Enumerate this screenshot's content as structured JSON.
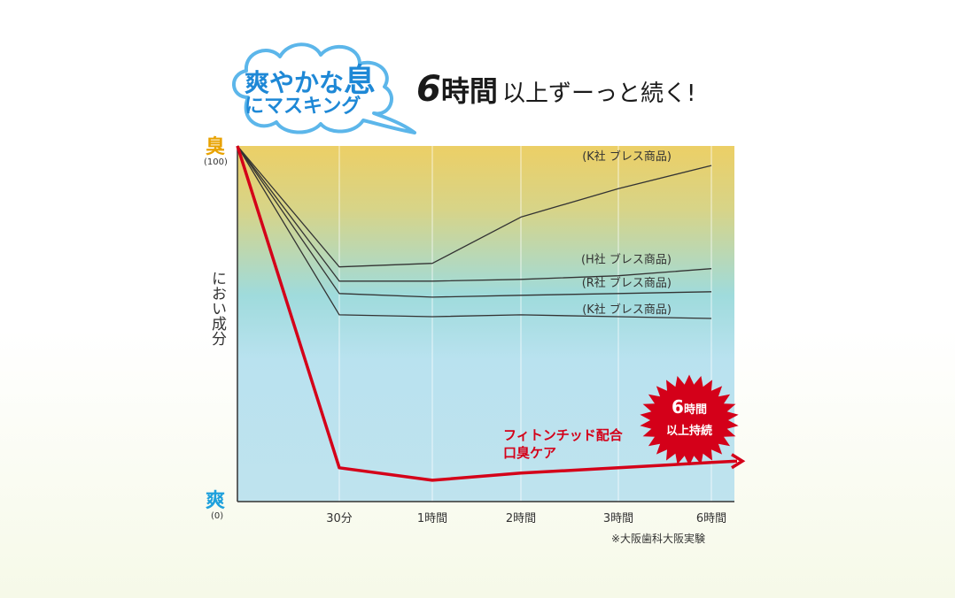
{
  "header": {
    "cloud_line1_a": "爽やかな",
    "cloud_line1_b": "息",
    "cloud_line2": "にマスキング",
    "headline_num": "6",
    "headline_unit": "時間",
    "headline_rest": "以上ずーっと続く!"
  },
  "axis": {
    "top_label": "臭",
    "top_value": "(100)",
    "bottom_label": "爽",
    "bottom_value": "(0)",
    "title": "におい成分"
  },
  "badge": {
    "num": "6",
    "unit": "時間",
    "line2": "以上持続"
  },
  "main_label": {
    "line1": "フィトンチッド配合",
    "line2": "口臭ケア"
  },
  "note": "※大阪歯科大阪実験",
  "colors": {
    "odor": "#e8a200",
    "fresh": "#1ea0dc",
    "highlight": "#d40019"
  },
  "chart_data": {
    "type": "line",
    "categories": [
      "0",
      "30分",
      "1時間",
      "2時間",
      "3時間",
      "6時間"
    ],
    "x_tick_labels": [
      "30分",
      "1時間",
      "2時間",
      "3時間",
      "6時間"
    ],
    "ylim": [
      0,
      100
    ],
    "series": [
      {
        "name": "(K社 ブレス商品)",
        "values": [
          100,
          66,
          67,
          80,
          88,
          94.5
        ],
        "color": "#333333"
      },
      {
        "name": "(H社 ブレス商品)",
        "values": [
          100,
          62,
          62,
          62.5,
          63.5,
          65.5
        ],
        "color": "#333333"
      },
      {
        "name": "(R社 ブレス商品)",
        "values": [
          100,
          58.5,
          57.5,
          58,
          58.5,
          59
        ],
        "color": "#333333"
      },
      {
        "name": "(K社 ブレス商品)",
        "values": [
          100,
          52.5,
          52,
          52.5,
          52,
          51.5
        ],
        "color": "#333333"
      },
      {
        "name": "フィトンチッド配合口臭ケア",
        "values": [
          100,
          9.5,
          6,
          8,
          9.5,
          11
        ],
        "color": "#d40019"
      }
    ]
  }
}
